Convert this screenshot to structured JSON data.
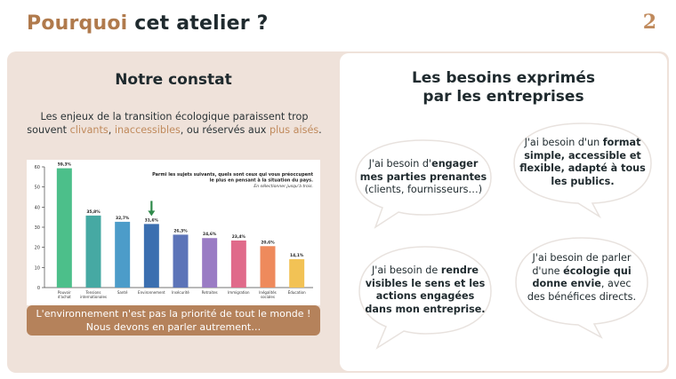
{
  "header": {
    "title_accent": "Pourquoi",
    "title_rest": "cet atelier ?",
    "page_number": "2"
  },
  "left": {
    "heading": "Notre constat",
    "intro_1": "Les enjeux de la transition écologique paraissent trop souvent ",
    "intro_hl_1": "clivants",
    "intro_sep_1": ", ",
    "intro_hl_2": "inaccessibles",
    "intro_sep_2": ", ou réservés aux ",
    "intro_hl_3": "plus aisés",
    "intro_end": ".",
    "banner_line_1": "L'environnement n'est pas la priorité de tout le monde !",
    "banner_line_2": "Nous devons en parler autrement…"
  },
  "chart_data": {
    "type": "bar",
    "title": "Parmi les sujets suivants, quels sont ceux qui vous préoccupent le plus en pensant à la situation du pays.",
    "subtitle": "En sélectionner jusqu'à trois.",
    "categories": [
      "Pouvoir d'achat",
      "Tensions internationales",
      "Santé",
      "Environnement",
      "Insécurité",
      "Retraites",
      "Immigration",
      "Inégalités sociales",
      "Éducation"
    ],
    "values": [
      59.3,
      35.8,
      32.7,
      31.6,
      26.3,
      24.6,
      23.4,
      20.6,
      14.1
    ],
    "labels": [
      "59,3%",
      "35,8%",
      "32,7%",
      "31,6%",
      "26,3%",
      "24,6%",
      "23,4%",
      "20,6%",
      "14,1%"
    ],
    "colors": [
      "#4cbf8a",
      "#46a9a3",
      "#4c9cc9",
      "#3b6fb0",
      "#5c74b8",
      "#9a7cc4",
      "#e06a8a",
      "#ee8a5c",
      "#f2c255"
    ],
    "highlight": "Environnement",
    "ylim": [
      0,
      60
    ],
    "yticks": [
      0,
      10,
      20,
      30,
      40,
      50,
      60
    ],
    "grid": false
  },
  "right": {
    "heading_1": "Les besoins exprimés",
    "heading_2": "par les entreprises",
    "b1_a": "J'ai besoin d'",
    "b1_b": "engager",
    "b1_c": "mes parties prenantes",
    "b1_d": "(clients, fournisseurs…)",
    "b2_a": "J'ai besoin d'un ",
    "b2_b": "format",
    "b2_c": "simple, accessible et",
    "b2_d": "flexible, adapté à tous",
    "b2_e": "les publics.",
    "b3_a": "J'ai besoin de ",
    "b3_b": "rendre",
    "b3_c": "visibles le sens et les",
    "b3_d": "actions engagées",
    "b3_e": "dans mon entreprise.",
    "b4_a": "J'ai besoin de parler",
    "b4_b": "d'une ",
    "b4_c": "écologie qui",
    "b4_d": "donne envie",
    "b4_e": ", avec",
    "b4_f": "des bénéfices directs."
  }
}
